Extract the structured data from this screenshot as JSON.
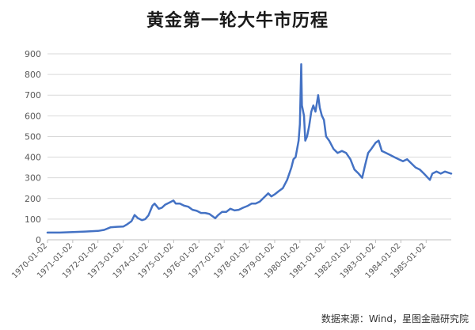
{
  "chart_data": {
    "type": "line",
    "title": "黄金第一轮大牛市历程",
    "xlabel": "",
    "ylabel": "",
    "ylim": [
      0,
      900
    ],
    "yticks": [
      0,
      100,
      200,
      300,
      400,
      500,
      600,
      700,
      800,
      900
    ],
    "xticks": [
      "1970-01-02",
      "1971-01-02",
      "1972-01-02",
      "1973-01-02",
      "1974-01-02",
      "1975-01-02",
      "1976-01-02",
      "1977-01-02",
      "1978-01-02",
      "1979-01-02",
      "1980-01-02",
      "1981-01-02",
      "1982-01-02",
      "1983-01-02",
      "1984-01-02",
      "1985-01-02"
    ],
    "grid": true,
    "legend": "none",
    "line_color": "#4472c4",
    "series": [
      {
        "x": [
          "1970-01-02",
          "1970-07-01",
          "1971-01-02",
          "1971-07-01",
          "1972-01-02",
          "1972-04-01",
          "1972-07-01",
          "1972-10-01",
          "1973-01-02",
          "1973-03-01",
          "1973-05-01",
          "1973-06-15",
          "1973-08-01",
          "1973-10-01",
          "1973-11-15",
          "1974-01-02",
          "1974-03-01",
          "1974-04-01",
          "1974-06-01",
          "1974-07-15",
          "1974-09-01",
          "1974-11-01",
          "1974-12-30",
          "1975-02-01",
          "1975-04-01",
          "1975-06-01",
          "1975-08-01",
          "1975-10-01",
          "1975-12-01",
          "1976-02-01",
          "1976-04-01",
          "1976-06-01",
          "1976-08-25",
          "1976-10-01",
          "1976-12-01",
          "1977-02-01",
          "1977-04-01",
          "1977-06-01",
          "1977-08-01",
          "1977-10-01",
          "1977-12-01",
          "1978-02-01",
          "1978-04-01",
          "1978-06-01",
          "1978-08-01",
          "1978-10-01",
          "1978-11-15",
          "1979-01-02",
          "1979-03-01",
          "1979-05-01",
          "1979-07-01",
          "1979-09-01",
          "1979-10-01",
          "1979-11-01",
          "1979-12-15",
          "1980-01-02",
          "1980-01-21",
          "1980-02-01",
          "1980-03-01",
          "1980-03-20",
          "1980-04-15",
          "1980-05-15",
          "1980-06-15",
          "1980-07-15",
          "1980-08-15",
          "1980-09-22",
          "1980-10-15",
          "1980-11-15",
          "1980-12-15",
          "1981-01-15",
          "1981-03-01",
          "1981-05-01",
          "1981-07-01",
          "1981-09-01",
          "1981-11-01",
          "1982-01-02",
          "1982-03-01",
          "1982-05-01",
          "1982-06-21",
          "1982-08-01",
          "1982-09-15",
          "1982-11-01",
          "1983-01-02",
          "1983-02-15",
          "1983-04-01",
          "1983-06-01",
          "1983-08-01",
          "1983-10-01",
          "1983-12-01",
          "1984-02-01",
          "1984-04-01",
          "1984-06-01",
          "1984-08-01",
          "1984-10-01",
          "1984-12-01",
          "1985-02-25",
          "1985-04-01",
          "1985-06-01",
          "1985-08-01",
          "1985-10-01",
          "1985-12-31"
        ],
        "y": [
          35,
          35,
          37,
          40,
          43,
          48,
          60,
          63,
          64,
          75,
          90,
          120,
          105,
          95,
          100,
          118,
          165,
          175,
          150,
          155,
          170,
          180,
          190,
          175,
          175,
          165,
          160,
          145,
          140,
          130,
          130,
          125,
          104,
          118,
          135,
          135,
          150,
          142,
          145,
          155,
          163,
          175,
          175,
          185,
          205,
          225,
          210,
          220,
          235,
          250,
          290,
          350,
          390,
          400,
          480,
          560,
          850,
          650,
          600,
          480,
          500,
          550,
          620,
          650,
          620,
          700,
          640,
          600,
          580,
          500,
          480,
          440,
          420,
          430,
          420,
          390,
          340,
          320,
          300,
          360,
          420,
          440,
          470,
          480,
          430,
          420,
          410,
          400,
          390,
          380,
          390,
          370,
          350,
          340,
          320,
          290,
          320,
          330,
          320,
          330,
          320
        ]
      }
    ]
  },
  "source_note": "数据来源：Wind，星图金融研究院"
}
